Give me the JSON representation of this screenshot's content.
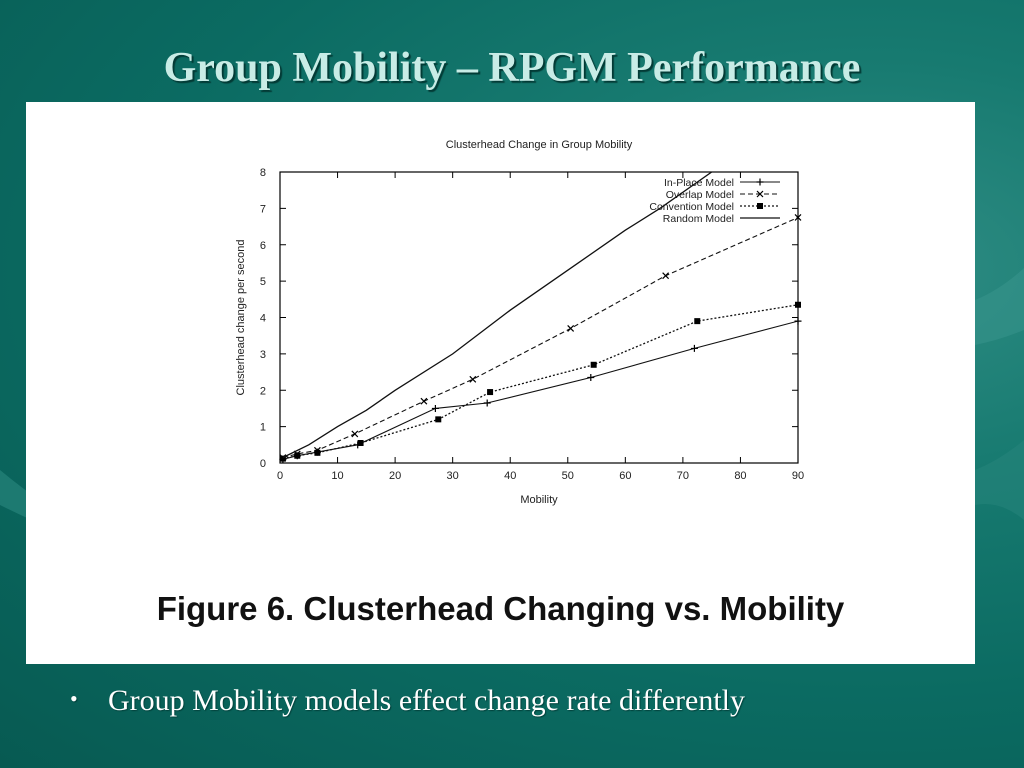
{
  "slide": {
    "title": "Group Mobility – RPGM Performance",
    "caption": "Figure 6. Clusterhead Changing vs. Mobility",
    "bullets": [
      {
        "marker": "•",
        "text": "Group Mobility models effect change rate differently"
      }
    ]
  },
  "colors": {
    "background": "#0b6b62",
    "title_text": "#c8ece6",
    "panel": "#ffffff",
    "bullet_text": "#ffffff"
  },
  "chart_data": {
    "type": "line",
    "title": "Clusterhead Change in Group Mobility",
    "xlabel": "Mobility",
    "ylabel": "Clusterhead change per second",
    "xlim": [
      0,
      90
    ],
    "ylim": [
      0,
      8
    ],
    "xticks": [
      0,
      10,
      20,
      30,
      40,
      50,
      60,
      70,
      80,
      90
    ],
    "yticks": [
      0,
      1,
      2,
      3,
      4,
      5,
      6,
      7,
      8
    ],
    "grid": false,
    "legend_position": "top-right",
    "series": [
      {
        "name": "In-Place Model",
        "marker": "plus",
        "dash": "solid",
        "points": [
          [
            0.5,
            0.1
          ],
          [
            3,
            0.2
          ],
          [
            6.5,
            0.3
          ],
          [
            13.5,
            0.5
          ],
          [
            27,
            1.5
          ],
          [
            36,
            1.65
          ],
          [
            54,
            2.35
          ],
          [
            72,
            3.15
          ],
          [
            90,
            3.9
          ]
        ]
      },
      {
        "name": "Overlap Model",
        "marker": "cross",
        "dash": "dashed",
        "points": [
          [
            0.5,
            0.15
          ],
          [
            3,
            0.25
          ],
          [
            6.5,
            0.35
          ],
          [
            13,
            0.8
          ],
          [
            25,
            1.7
          ],
          [
            33.5,
            2.3
          ],
          [
            50.5,
            3.7
          ],
          [
            67,
            5.15
          ],
          [
            90,
            6.75
          ]
        ]
      },
      {
        "name": "Convention Model",
        "marker": "square",
        "dash": "dotted",
        "points": [
          [
            0.5,
            0.12
          ],
          [
            3,
            0.2
          ],
          [
            6.5,
            0.28
          ],
          [
            14,
            0.55
          ],
          [
            27.5,
            1.2
          ],
          [
            36.5,
            1.95
          ],
          [
            54.5,
            2.7
          ],
          [
            72.5,
            3.9
          ],
          [
            90,
            4.35
          ]
        ]
      },
      {
        "name": "Random Model",
        "marker": "none",
        "dash": "solid",
        "points": [
          [
            0.5,
            0.15
          ],
          [
            5,
            0.5
          ],
          [
            10,
            1.0
          ],
          [
            15,
            1.45
          ],
          [
            20,
            2.0
          ],
          [
            30,
            3.0
          ],
          [
            40,
            4.2
          ],
          [
            50,
            5.3
          ],
          [
            60,
            6.4
          ],
          [
            66,
            7.0
          ],
          [
            75,
            8.0
          ]
        ]
      }
    ]
  }
}
